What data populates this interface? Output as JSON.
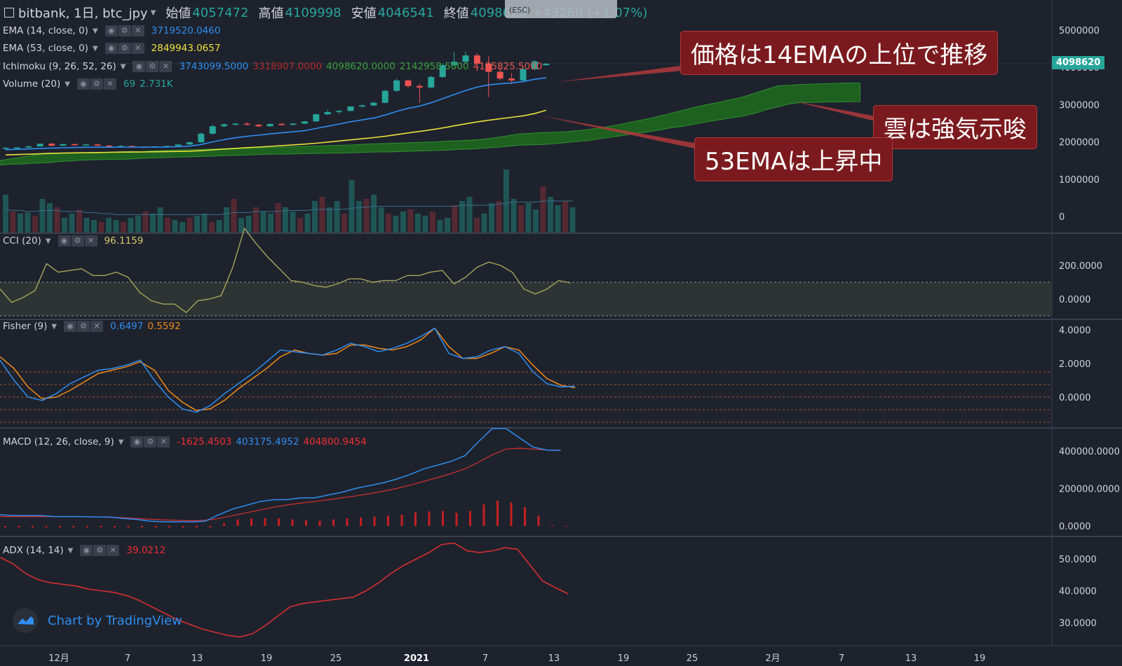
{
  "header": {
    "symbol": "bitbank, 1日, btc_jpy",
    "open_label": "始値",
    "open": "4057472",
    "high_label": "高値",
    "high": "4109998",
    "low_label": "安値",
    "low": "4046541",
    "close_label": "終値",
    "close": "4098620",
    "change": "+43260 (+1.07%)",
    "fullscreen_hint": "(ESC)"
  },
  "legends": {
    "ema14": {
      "name": "EMA (14, close, 0)",
      "value": "3719520.0460"
    },
    "ema53": {
      "name": "EMA (53, close, 0)",
      "value": "2849943.0657"
    },
    "ichimoku": {
      "name": "Ichimoku (9, 26, 52, 26)",
      "v1": "3743099.5000",
      "v2": "3318907.0000",
      "v3": "4098620.0000",
      "v4": "2142958.5000",
      "v5": "4135825.5000"
    },
    "volume": {
      "name": "Volume (20)",
      "v1": "69",
      "v2": "2.731K"
    },
    "cci": {
      "name": "CCI (20)",
      "value": "96.1159"
    },
    "fisher": {
      "name": "Fisher (9)",
      "v1": "0.6497",
      "v2": "0.5592"
    },
    "macd": {
      "name": "MACD (12, 26, close, 9)",
      "v1": "-1625.4503",
      "v2": "403175.4952",
      "v3": "404800.9454"
    },
    "adx": {
      "name": "ADX (14, 14)",
      "value": "39.0212"
    }
  },
  "annotations": {
    "a1": "価格は14EMAの上位で推移",
    "a2": "雲は強気示唆",
    "a3": "53EMAは上昇中"
  },
  "price_tag": "4098620",
  "logo_text": "Chart by TradingView",
  "colors": {
    "up": "#26a69a",
    "down": "#ef5350",
    "ema14": "#2e8ef0",
    "ema53": "#e8e03a",
    "cloud": "#1f6b1f",
    "cci": "#a8a55a",
    "fisher1": "#2e8ef0",
    "fisher2": "#ef8a1a",
    "macd": "#2e8ef0",
    "signal": "#d32f2f",
    "adx": "#d32f2f"
  },
  "chart_data": [
    {
      "type": "candlestick",
      "title": "bitbank, 1日, btc_jpy",
      "y_ticks": [
        "5000000",
        "4000000",
        "3000000",
        "2000000",
        "1000000",
        "0"
      ],
      "x_ticks": [
        "12月",
        "7",
        "13",
        "19",
        "25",
        "2021",
        "7",
        "13",
        "19",
        "25",
        "2月",
        "7",
        "13",
        "19"
      ],
      "candles": [
        [
          1820000,
          1870000,
          1780000,
          1840000
        ],
        [
          1840000,
          1860000,
          1800000,
          1850000
        ],
        [
          1850000,
          1900000,
          1830000,
          1880000
        ],
        [
          1880000,
          1960000,
          1870000,
          1950000
        ],
        [
          1950000,
          1970000,
          1880000,
          1900000
        ],
        [
          1900000,
          1950000,
          1890000,
          1940000
        ],
        [
          1940000,
          1950000,
          1900000,
          1920000
        ],
        [
          1920000,
          1960000,
          1910000,
          1930000
        ],
        [
          1930000,
          1950000,
          1890000,
          1900000
        ],
        [
          1900000,
          1920000,
          1860000,
          1880000
        ],
        [
          1880000,
          1910000,
          1860000,
          1890000
        ],
        [
          1890000,
          1900000,
          1850000,
          1870000
        ],
        [
          1870000,
          1880000,
          1830000,
          1850000
        ],
        [
          1850000,
          1890000,
          1840000,
          1880000
        ],
        [
          1880000,
          1900000,
          1860000,
          1890000
        ],
        [
          1890000,
          1940000,
          1880000,
          1930000
        ],
        [
          1930000,
          2000000,
          1920000,
          1990000
        ],
        [
          1990000,
          2250000,
          1980000,
          2220000
        ],
        [
          2220000,
          2460000,
          2200000,
          2420000
        ],
        [
          2420000,
          2500000,
          2390000,
          2470000
        ],
        [
          2470000,
          2510000,
          2430000,
          2490000
        ],
        [
          2490000,
          2520000,
          2440000,
          2460000
        ],
        [
          2460000,
          2480000,
          2390000,
          2420000
        ],
        [
          2420000,
          2500000,
          2410000,
          2480000
        ],
        [
          2480000,
          2510000,
          2440000,
          2460000
        ],
        [
          2460000,
          2500000,
          2430000,
          2490000
        ],
        [
          2490000,
          2560000,
          2480000,
          2550000
        ],
        [
          2550000,
          2760000,
          2540000,
          2740000
        ],
        [
          2740000,
          2860000,
          2720000,
          2800000
        ],
        [
          2800000,
          2860000,
          2760000,
          2830000
        ],
        [
          2830000,
          2960000,
          2820000,
          2950000
        ],
        [
          2950000,
          3000000,
          2920000,
          2980000
        ],
        [
          2980000,
          3080000,
          2950000,
          3050000
        ],
        [
          3050000,
          3400000,
          3030000,
          3370000
        ],
        [
          3370000,
          3700000,
          3340000,
          3650000
        ],
        [
          3650000,
          3680000,
          3450000,
          3500000
        ],
        [
          3500000,
          3560000,
          3050000,
          3460000
        ],
        [
          3460000,
          3780000,
          3430000,
          3740000
        ],
        [
          3740000,
          4100000,
          3720000,
          4060000
        ],
        [
          4060000,
          4400000,
          4020000,
          4150000
        ],
        [
          4150000,
          4420000,
          4100000,
          4320000
        ],
        [
          4320000,
          4380000,
          3900000,
          4100000
        ],
        [
          4100000,
          4300000,
          3200000,
          3880000
        ],
        [
          3880000,
          4000000,
          3650000,
          3700000
        ],
        [
          3700000,
          3850000,
          3550000,
          3650000
        ],
        [
          3650000,
          4000000,
          3620000,
          3950000
        ],
        [
          3950000,
          4200000,
          3930000,
          4160000
        ],
        [
          4057472,
          4109998,
          4046541,
          4098620
        ]
      ],
      "ema14": [
        1790000,
        1800000,
        1810000,
        1825000,
        1835000,
        1843000,
        1850000,
        1855000,
        1858000,
        1858000,
        1860000,
        1860000,
        1858000,
        1860000,
        1862000,
        1870000,
        1885000,
        1930000,
        2000000,
        2060000,
        2110000,
        2150000,
        2180000,
        2215000,
        2245000,
        2270000,
        2300000,
        2360000,
        2420000,
        2480000,
        2540000,
        2590000,
        2640000,
        2720000,
        2820000,
        2900000,
        2960000,
        3050000,
        3160000,
        3270000,
        3380000,
        3470000,
        3530000,
        3560000,
        3580000,
        3620000,
        3680000,
        3719520
      ],
      "ema53": [
        1650000,
        1660000,
        1670000,
        1680000,
        1690000,
        1700000,
        1705000,
        1710000,
        1715000,
        1720000,
        1725000,
        1728000,
        1730000,
        1735000,
        1740000,
        1745000,
        1750000,
        1765000,
        1785000,
        1805000,
        1825000,
        1845000,
        1860000,
        1880000,
        1900000,
        1920000,
        1940000,
        1965000,
        1995000,
        2025000,
        2055000,
        2085000,
        2115000,
        2150000,
        2195000,
        2240000,
        2280000,
        2325000,
        2375000,
        2430000,
        2485000,
        2535000,
        2580000,
        2620000,
        2660000,
        2700000,
        2760000,
        2849943
      ],
      "cloud": [
        [
          1500000,
          1380000
        ],
        [
          1550000,
          1400000
        ],
        [
          1600000,
          1410000
        ],
        [
          1650000,
          1430000
        ],
        [
          1700000,
          1440000
        ],
        [
          1700000,
          1470000
        ],
        [
          1700000,
          1490000
        ],
        [
          1700000,
          1510000
        ],
        [
          1700000,
          1520000
        ],
        [
          1720000,
          1530000
        ],
        [
          1730000,
          1530000
        ],
        [
          1740000,
          1540000
        ],
        [
          1740000,
          1560000
        ],
        [
          1760000,
          1570000
        ],
        [
          1770000,
          1580000
        ],
        [
          1780000,
          1590000
        ],
        [
          1790000,
          1600000
        ],
        [
          1800000,
          1610000
        ],
        [
          1810000,
          1620000
        ],
        [
          1820000,
          1630000
        ],
        [
          1830000,
          1640000
        ],
        [
          1830000,
          1650000
        ],
        [
          1840000,
          1660000
        ],
        [
          1850000,
          1670000
        ],
        [
          1860000,
          1670000
        ],
        [
          1870000,
          1680000
        ],
        [
          1880000,
          1690000
        ],
        [
          1890000,
          1690000
        ],
        [
          1900000,
          1700000
        ],
        [
          1910000,
          1700000
        ],
        [
          1920000,
          1710000
        ],
        [
          1940000,
          1720000
        ],
        [
          1950000,
          1730000
        ],
        [
          1960000,
          1730000
        ],
        [
          1970000,
          1740000
        ],
        [
          1980000,
          1750000
        ],
        [
          1990000,
          1760000
        ],
        [
          2000000,
          1770000
        ],
        [
          2020000,
          1780000
        ],
        [
          2030000,
          1800000
        ],
        [
          2050000,
          1810000
        ],
        [
          2070000,
          1830000
        ],
        [
          2110000,
          1850000
        ],
        [
          2160000,
          1880000
        ],
        [
          2210000,
          1910000
        ],
        [
          2230000,
          1920000
        ],
        [
          2250000,
          1930000
        ],
        [
          2260000,
          1950000
        ],
        [
          2270000,
          1980000
        ],
        [
          2300000,
          2010000
        ],
        [
          2330000,
          2040000
        ],
        [
          2380000,
          2090000
        ],
        [
          2430000,
          2130000
        ],
        [
          2490000,
          2180000
        ],
        [
          2560000,
          2230000
        ],
        [
          2620000,
          2270000
        ],
        [
          2690000,
          2320000
        ],
        [
          2770000,
          2380000
        ],
        [
          2850000,
          2420000
        ],
        [
          2930000,
          2480000
        ],
        [
          3000000,
          2540000
        ],
        [
          3060000,
          2590000
        ],
        [
          3130000,
          2640000
        ],
        [
          3200000,
          2690000
        ],
        [
          3300000,
          2760000
        ],
        [
          3400000,
          2860000
        ],
        [
          3500000,
          2940000
        ],
        [
          3520000,
          3020000
        ],
        [
          3540000,
          3060000
        ],
        [
          3550000,
          3060000
        ],
        [
          3560000,
          3070000
        ],
        [
          3570000,
          3070000
        ],
        [
          3580000,
          3080000
        ],
        [
          3580000,
          3080000
        ]
      ],
      "volume": [
        36,
        20,
        18,
        19,
        16,
        32,
        28,
        24,
        14,
        18,
        22,
        14,
        12,
        10,
        14,
        12,
        10,
        14,
        16,
        20,
        18,
        24,
        14,
        12,
        10,
        14,
        16,
        18,
        10,
        12,
        24,
        32,
        14,
        16,
        24,
        20,
        18,
        28,
        24,
        20,
        14,
        18,
        30,
        34,
        24,
        30,
        18,
        50,
        30,
        32,
        36,
        24,
        18,
        16,
        20,
        22,
        18,
        16,
        20,
        12,
        14,
        26,
        30,
        34,
        14,
        18,
        28,
        30,
        60,
        32,
        26,
        28,
        22,
        44,
        34,
        26,
        30,
        24
      ],
      "volume_ma": [
        22,
        21,
        21,
        20,
        20,
        21,
        21,
        21,
        20,
        20,
        20,
        19,
        19,
        18,
        18,
        17,
        17,
        17,
        17,
        17,
        17,
        17,
        17,
        17,
        17,
        17,
        17,
        17,
        17,
        17,
        18,
        19,
        19,
        19,
        20,
        20,
        20,
        20,
        21,
        21,
        21,
        21,
        22,
        22,
        22,
        22,
        22,
        23,
        24,
        24,
        25,
        25,
        25,
        25,
        25,
        25,
        25,
        25,
        25,
        25,
        25,
        25,
        26,
        26,
        26,
        26,
        26,
        27,
        28,
        29,
        29,
        29,
        29,
        30,
        30,
        30,
        30,
        30
      ]
    },
    {
      "type": "line",
      "name": "CCI",
      "y_ticks": [
        "200.0000",
        "0.0000"
      ],
      "levels": [
        100,
        -100
      ],
      "values": [
        60,
        -20,
        10,
        50,
        210,
        160,
        170,
        180,
        140,
        140,
        160,
        130,
        40,
        -10,
        -30,
        -30,
        -80,
        -10,
        0,
        20,
        190,
        420,
        330,
        250,
        180,
        110,
        100,
        80,
        70,
        90,
        120,
        120,
        100,
        110,
        110,
        140,
        140,
        160,
        170,
        90,
        130,
        190,
        220,
        200,
        160,
        60,
        30,
        60,
        110,
        96
      ]
    },
    {
      "type": "line",
      "name": "Fisher",
      "y_ticks": [
        "4.0000",
        "2.0000",
        "0.0000"
      ],
      "levels": [
        1.5,
        0.75,
        0,
        -0.75,
        -1.5
      ],
      "fisher": [
        2.2,
        1.0,
        0.0,
        -0.2,
        0.2,
        0.8,
        1.2,
        1.6,
        1.7,
        1.9,
        2.2,
        1.0,
        0.0,
        -0.7,
        -0.9,
        -0.5,
        0.2,
        0.8,
        1.4,
        2.1,
        2.8,
        2.7,
        2.6,
        2.5,
        2.8,
        3.2,
        3.0,
        2.7,
        2.9,
        3.2,
        3.6,
        4.1,
        2.6,
        2.3,
        2.4,
        2.8,
        3.0,
        2.6,
        1.5,
        0.8,
        0.6,
        0.65
      ],
      "trigger": [
        2.4,
        1.7,
        0.6,
        -0.1,
        0.0,
        0.4,
        0.9,
        1.4,
        1.6,
        1.8,
        2.1,
        1.6,
        0.4,
        -0.3,
        -0.8,
        -0.7,
        -0.2,
        0.5,
        1.1,
        1.7,
        2.4,
        2.8,
        2.6,
        2.5,
        2.6,
        3.1,
        3.1,
        2.9,
        2.8,
        3.0,
        3.4,
        4.1,
        3.0,
        2.3,
        2.3,
        2.6,
        3.0,
        2.8,
        1.9,
        1.1,
        0.7,
        0.56
      ]
    },
    {
      "type": "line",
      "name": "MACD",
      "y_ticks": [
        "400000.0000",
        "200000.0000",
        "0.0000"
      ],
      "macd": [
        60000,
        55000,
        55000,
        55000,
        50000,
        50000,
        50000,
        48000,
        48000,
        40000,
        35000,
        25000,
        22000,
        22000,
        22000,
        25000,
        60000,
        90000,
        110000,
        130000,
        140000,
        140000,
        150000,
        150000,
        165000,
        180000,
        200000,
        215000,
        230000,
        250000,
        275000,
        305000,
        325000,
        345000,
        375000,
        450000,
        520000,
        520000,
        470000,
        420000,
        405000,
        403175
      ],
      "signal": [
        50000,
        50000,
        50000,
        50000,
        50000,
        50000,
        50000,
        48000,
        46000,
        44000,
        40000,
        36000,
        32000,
        30000,
        28000,
        30000,
        40000,
        55000,
        70000,
        85000,
        100000,
        112000,
        122000,
        130000,
        140000,
        150000,
        160000,
        172000,
        185000,
        200000,
        218000,
        238000,
        258000,
        280000,
        305000,
        340000,
        380000,
        410000,
        415000,
        410000,
        405000,
        404801
      ],
      "hist": [
        -8000,
        -8000,
        -8000,
        -8000,
        -8000,
        -8000,
        -8000,
        -8000,
        -8000,
        -8000,
        -8000,
        -8000,
        -8000,
        -8000,
        -8000,
        -8000,
        14000,
        35000,
        40000,
        42000,
        40000,
        35000,
        30000,
        28000,
        35000,
        40000,
        45000,
        50000,
        55000,
        60000,
        72000,
        78000,
        80000,
        70000,
        80000,
        115000,
        135000,
        125000,
        100000,
        55000,
        5000,
        -1625
      ]
    },
    {
      "type": "line",
      "name": "ADX",
      "y_ticks": [
        "50.0000",
        "40.0000",
        "30.0000"
      ],
      "values": [
        50.5,
        48.5,
        45.5,
        43.5,
        42.5,
        42.0,
        41.5,
        40.5,
        40.0,
        39.5,
        38.5,
        37.0,
        35.0,
        33.0,
        31.0,
        29.5,
        28.0,
        27.0,
        26.0,
        25.5,
        26.5,
        29.0,
        32.0,
        35.0,
        36.0,
        36.5,
        37.0,
        37.5,
        38.0,
        40.0,
        42.5,
        45.5,
        48.0,
        50.0,
        52.0,
        54.5,
        55.0,
        52.5,
        52.0,
        52.5,
        53.5,
        53.0,
        48.0,
        43.0,
        41.0,
        39.0
      ]
    }
  ]
}
